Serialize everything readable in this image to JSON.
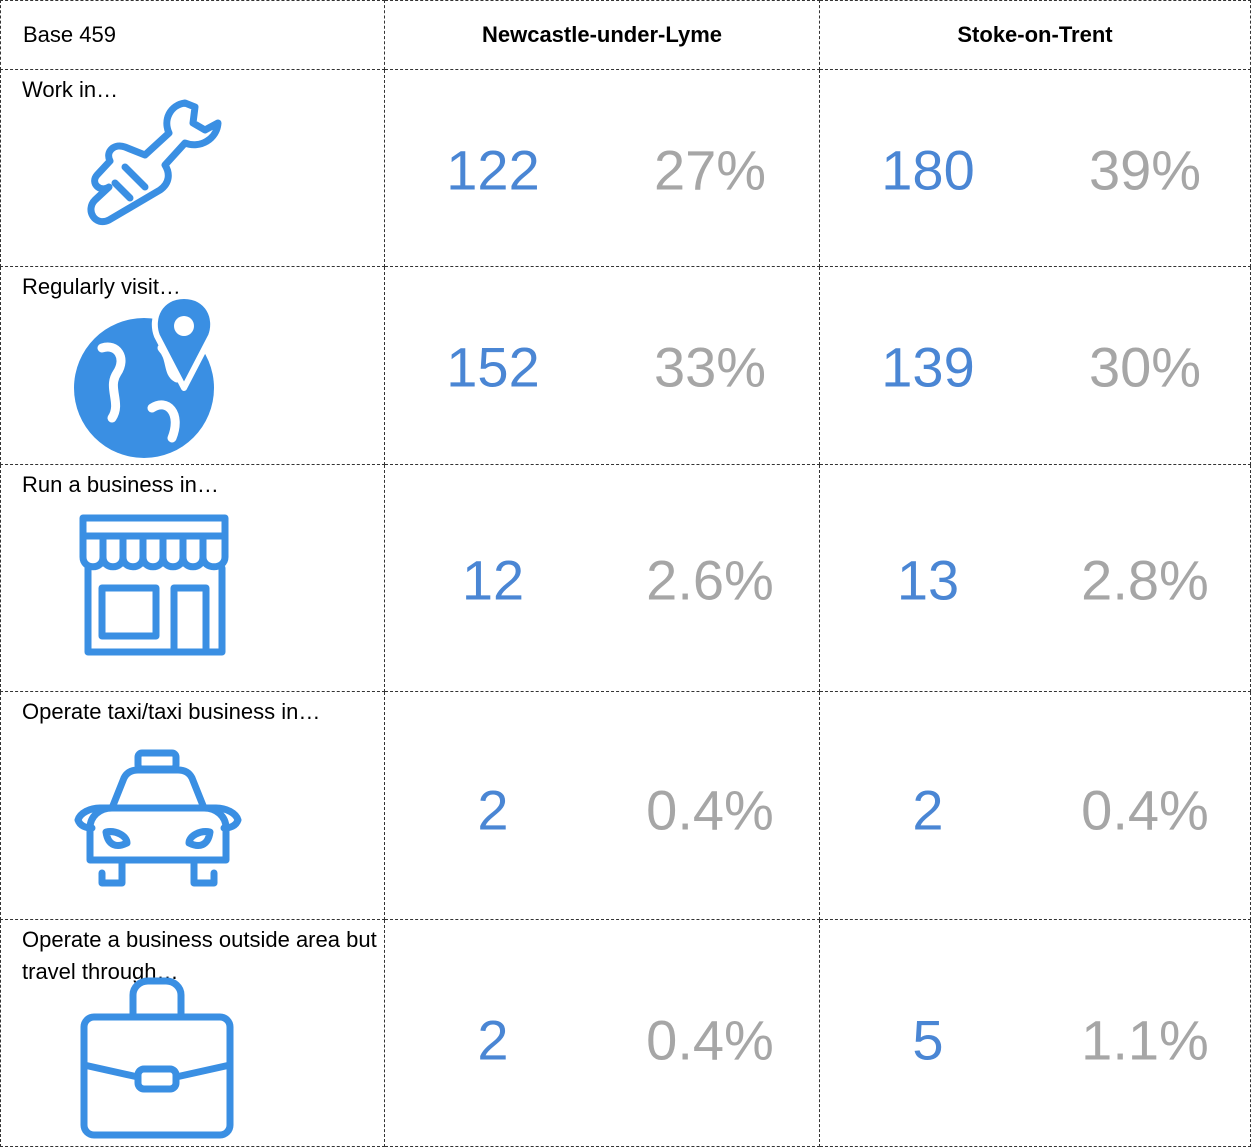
{
  "table": {
    "header": [
      "Base 459",
      "Newcastle-under-Lyme",
      "Stoke-on-Trent"
    ],
    "rows": [
      {
        "label": "Work in…",
        "values": [
          "122",
          "27%",
          "180",
          "39%"
        ]
      },
      {
        "label": "Regularly visit…",
        "values": [
          "152",
          "33%",
          "139",
          "30%"
        ]
      },
      {
        "label": "Run a business in…",
        "values": [
          "12",
          "2.6%",
          "13",
          "2.8%"
        ]
      },
      {
        "label": "Operate taxi/taxi business in…",
        "values": [
          "2",
          "0.4%",
          "2",
          "0.4%"
        ]
      },
      {
        "label": "Operate a business outside area but travel through…",
        "values": [
          "2",
          "0.4%",
          "5",
          "1.1%"
        ]
      }
    ]
  }
}
